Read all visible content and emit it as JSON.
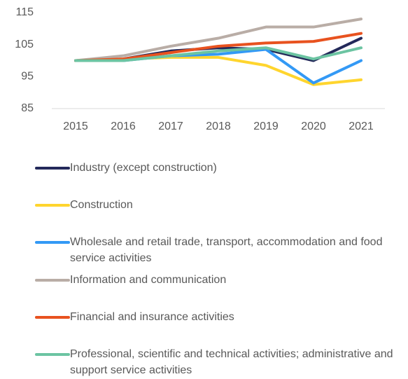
{
  "chart_data": {
    "type": "line",
    "categories": [
      "2015",
      "2016",
      "2017",
      "2018",
      "2019",
      "2020",
      "2021"
    ],
    "series": [
      {
        "name": "Industry (except construction)",
        "color": "#23295a",
        "values": [
          100,
          100.5,
          103,
          104,
          103.5,
          100,
          107
        ]
      },
      {
        "name": "Construction",
        "color": "#ffd52e",
        "values": [
          100,
          100.5,
          101,
          101,
          98.5,
          92.5,
          94
        ]
      },
      {
        "name": "Wholesale and retail trade, transport, accommodation and food service activities",
        "color": "#3399f5",
        "values": [
          100,
          100,
          101.5,
          102,
          103.5,
          93,
          100
        ]
      },
      {
        "name": "Information and communication",
        "color": "#b9ada6",
        "values": [
          100,
          101.5,
          104.5,
          107,
          110.5,
          110.5,
          113
        ]
      },
      {
        "name": "Financial and insurance activities",
        "color": "#e8521f",
        "values": [
          100,
          100.5,
          102.5,
          104.5,
          105.5,
          106,
          108.5
        ]
      },
      {
        "name": "Professional, scientific and technical activities; administrative and support service activities",
        "color": "#6cc4a2",
        "values": [
          100,
          100,
          101.5,
          103,
          104,
          100.5,
          104
        ]
      }
    ],
    "ylim": [
      85,
      115
    ],
    "yticks": [
      85,
      95,
      105,
      115
    ],
    "grid": false
  }
}
